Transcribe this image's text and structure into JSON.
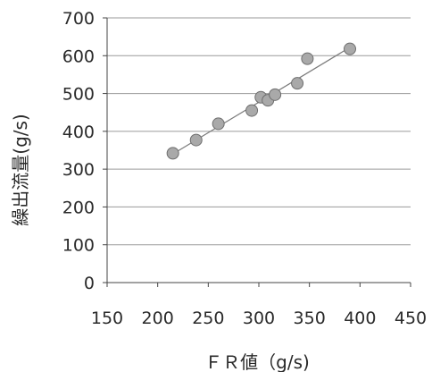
{
  "chart_data": {
    "type": "scatter",
    "title": "",
    "xlabel": "ＦＲ値（g/s)",
    "ylabel": "繰出流量(g/s)",
    "xlim": [
      150,
      450
    ],
    "ylim": [
      0,
      700
    ],
    "x_ticks": [
      "150",
      "200",
      "250",
      "300",
      "350",
      "400",
      "450"
    ],
    "y_ticks": [
      "0",
      "100",
      "200",
      "300",
      "400",
      "500",
      "600",
      "700"
    ],
    "grid": "horizontal",
    "legend": "none",
    "series": [
      {
        "points": [
          {
            "x": 215,
            "y": 342
          },
          {
            "x": 238,
            "y": 377
          },
          {
            "x": 260,
            "y": 420
          },
          {
            "x": 293,
            "y": 455
          },
          {
            "x": 302,
            "y": 490
          },
          {
            "x": 309,
            "y": 482
          },
          {
            "x": 316,
            "y": 497
          },
          {
            "x": 338,
            "y": 527
          },
          {
            "x": 348,
            "y": 592
          },
          {
            "x": 390,
            "y": 618
          }
        ]
      }
    ],
    "trendline": {
      "x": [
        215,
        390
      ],
      "y": [
        340,
        622
      ]
    },
    "colors": {
      "point_fill": "#a9a9a9",
      "point_stroke": "#6e6e6e",
      "trendline": "#7a7a7a",
      "gridline": "#9a9a9a"
    }
  }
}
